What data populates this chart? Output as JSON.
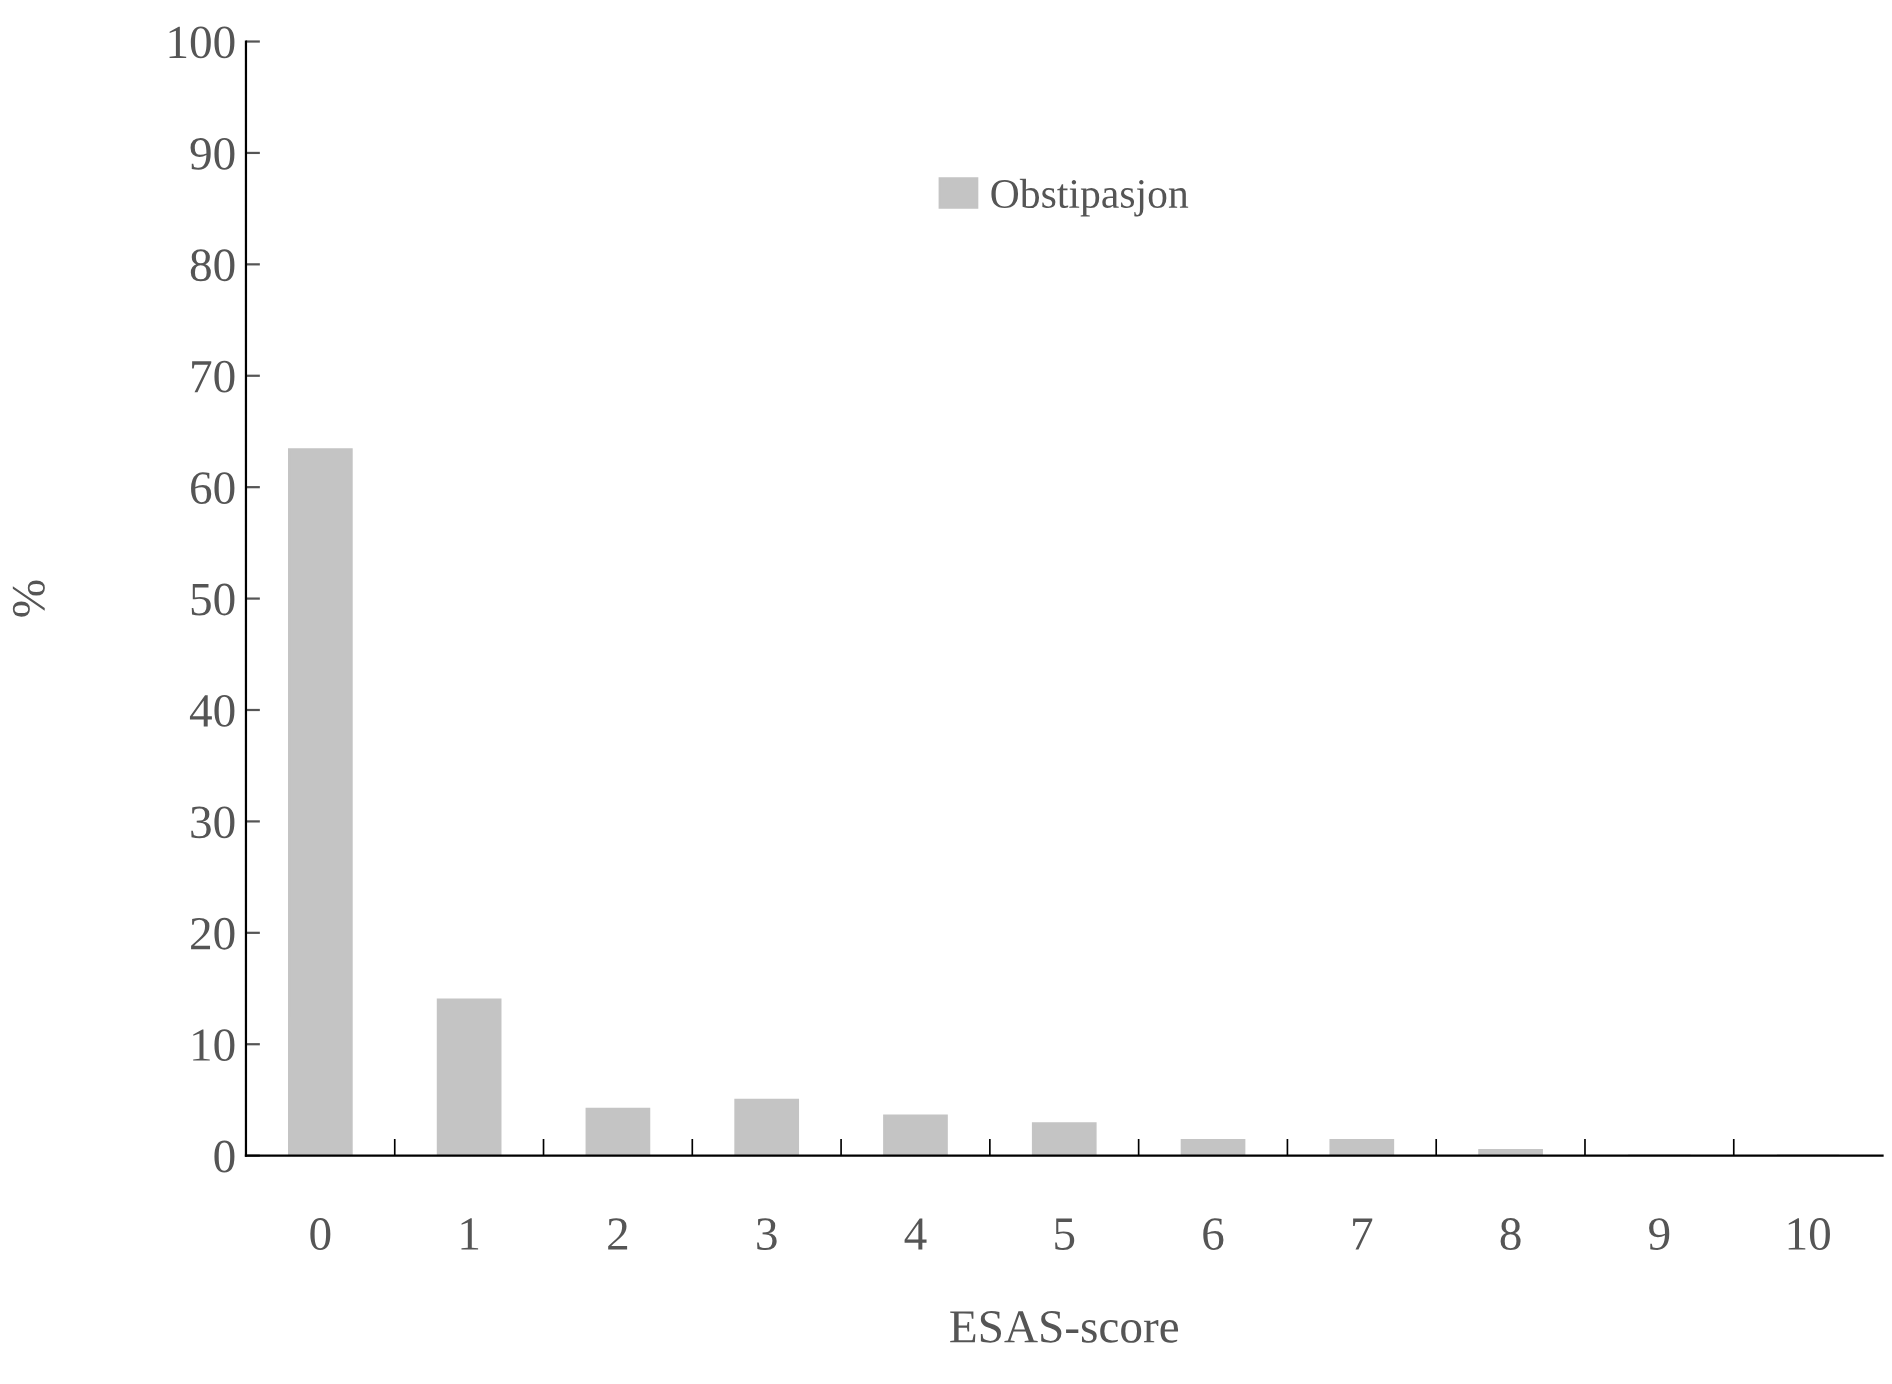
{
  "chart_data": {
    "type": "bar",
    "xlabel": "ESAS-score",
    "ylabel": "%",
    "categories": [
      "0",
      "1",
      "2",
      "3",
      "4",
      "5",
      "6",
      "7",
      "8",
      "9",
      "10"
    ],
    "series": [
      {
        "name": "Obstipasjon",
        "color": "#c4c4c4",
        "values": [
          63.4,
          14,
          4.2,
          5,
          3.6,
          2.9,
          1.4,
          1.4,
          0.5,
          0,
          0
        ]
      }
    ],
    "ylim": [
      0,
      100
    ],
    "yticks": [
      0,
      10,
      20,
      30,
      40,
      50,
      60,
      70,
      80,
      90,
      100
    ],
    "grid": false,
    "legend": "top"
  }
}
